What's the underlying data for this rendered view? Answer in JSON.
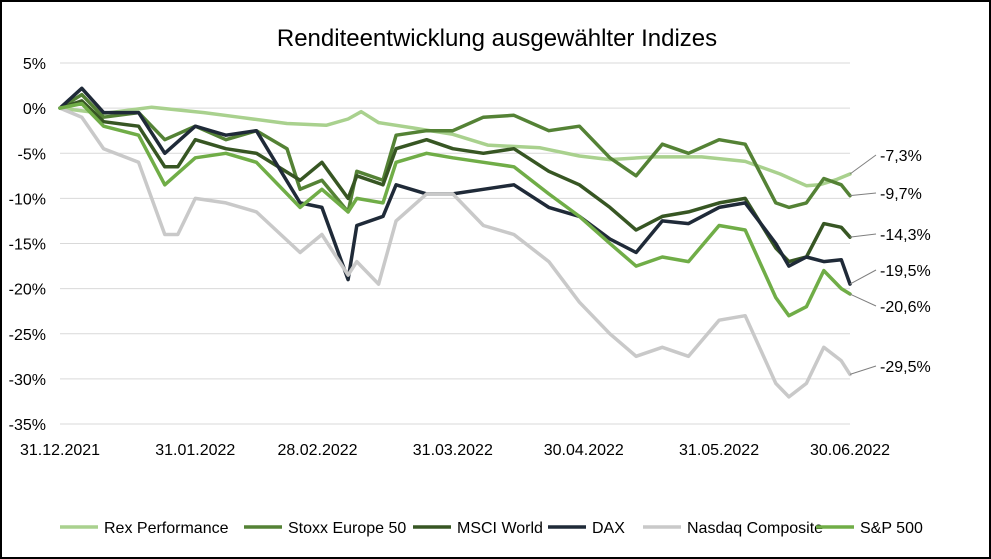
{
  "chart_data": {
    "type": "line",
    "title": "Renditeentwicklung ausgewählter Indizes",
    "xlabel": "",
    "ylabel": "",
    "ylim": [
      -35,
      5
    ],
    "y_ticks": [
      5,
      0,
      -5,
      -10,
      -15,
      -20,
      -25,
      -30,
      -35
    ],
    "y_tick_labels": [
      "5%",
      "0%",
      "-5%",
      "-10%",
      "-15%",
      "-20%",
      "-25%",
      "-30%",
      "-35%"
    ],
    "x_ticks": [
      "31.12.2021",
      "31.01.2022",
      "28.02.2022",
      "31.03.2022",
      "30.04.2022",
      "31.05.2022",
      "30.06.2022"
    ],
    "grid": true,
    "legend_position": "bottom",
    "series": [
      {
        "name": "Rex Performance",
        "color": "#a9d18e",
        "end_label": "-7,3%",
        "points": [
          [
            "31.12.2021",
            0
          ],
          [
            "10.01.2022",
            -0.6
          ],
          [
            "21.01.2022",
            0.1
          ],
          [
            "02.02.2022",
            -0.5
          ],
          [
            "10.02.2022",
            -1
          ],
          [
            "21.02.2022",
            -1.7
          ],
          [
            "02.03.2022",
            -1.9
          ],
          [
            "07.03.2022",
            -1.2
          ],
          [
            "10.03.2022",
            -0.4
          ],
          [
            "14.03.2022",
            -1.6
          ],
          [
            "22.03.2022",
            -2.2
          ],
          [
            "31.03.2022",
            -2.9
          ],
          [
            "08.04.2022",
            -4.1
          ],
          [
            "20.04.2022",
            -4.4
          ],
          [
            "29.04.2022",
            -5.3
          ],
          [
            "06.05.2022",
            -5.7
          ],
          [
            "16.05.2022",
            -5.4
          ],
          [
            "27.05.2022",
            -5.4
          ],
          [
            "06.06.2022",
            -5.9
          ],
          [
            "14.06.2022",
            -7.3
          ],
          [
            "20.06.2022",
            -8.6
          ],
          [
            "23.06.2022",
            -8.5
          ],
          [
            "27.06.2022",
            -7.9
          ],
          [
            "30.06.2022",
            -7.3
          ]
        ]
      },
      {
        "name": "Stoxx Europe 50",
        "color": "#548235",
        "end_label": "-9,7%",
        "points": [
          [
            "31.12.2021",
            0
          ],
          [
            "05.01.2022",
            1.5
          ],
          [
            "10.01.2022",
            -1
          ],
          [
            "18.01.2022",
            -0.5
          ],
          [
            "24.01.2022",
            -3.5
          ],
          [
            "31.01.2022",
            -2
          ],
          [
            "07.02.2022",
            -3.5
          ],
          [
            "14.02.2022",
            -2.5
          ],
          [
            "21.02.2022",
            -4.5
          ],
          [
            "24.02.2022",
            -9
          ],
          [
            "01.03.2022",
            -8
          ],
          [
            "07.03.2022",
            -11.5
          ],
          [
            "09.03.2022",
            -7
          ],
          [
            "15.03.2022",
            -8
          ],
          [
            "18.03.2022",
            -3
          ],
          [
            "25.03.2022",
            -2.5
          ],
          [
            "31.03.2022",
            -2.5
          ],
          [
            "07.04.2022",
            -1
          ],
          [
            "14.04.2022",
            -0.8
          ],
          [
            "22.04.2022",
            -2.5
          ],
          [
            "29.04.2022",
            -2
          ],
          [
            "06.05.2022",
            -5.5
          ],
          [
            "12.05.2022",
            -7.5
          ],
          [
            "18.05.2022",
            -4
          ],
          [
            "24.05.2022",
            -5
          ],
          [
            "31.05.2022",
            -3.5
          ],
          [
            "06.06.2022",
            -4
          ],
          [
            "13.06.2022",
            -10.5
          ],
          [
            "16.06.2022",
            -11
          ],
          [
            "20.06.2022",
            -10.5
          ],
          [
            "24.06.2022",
            -7.8
          ],
          [
            "28.06.2022",
            -8.5
          ],
          [
            "30.06.2022",
            -9.7
          ]
        ]
      },
      {
        "name": "MSCI World",
        "color": "#375623",
        "end_label": "-14,3%",
        "points": [
          [
            "31.12.2021",
            0
          ],
          [
            "05.01.2022",
            0.8
          ],
          [
            "10.01.2022",
            -1.5
          ],
          [
            "18.01.2022",
            -2
          ],
          [
            "24.01.2022",
            -6.5
          ],
          [
            "27.01.2022",
            -6.5
          ],
          [
            "31.01.2022",
            -3.5
          ],
          [
            "07.02.2022",
            -4.5
          ],
          [
            "14.02.2022",
            -5
          ],
          [
            "24.02.2022",
            -8
          ],
          [
            "01.03.2022",
            -6
          ],
          [
            "07.03.2022",
            -10
          ],
          [
            "09.03.2022",
            -7.5
          ],
          [
            "15.03.2022",
            -8.5
          ],
          [
            "18.03.2022",
            -4.5
          ],
          [
            "25.03.2022",
            -3.5
          ],
          [
            "31.03.2022",
            -4.5
          ],
          [
            "07.04.2022",
            -5
          ],
          [
            "14.04.2022",
            -4.5
          ],
          [
            "22.04.2022",
            -7
          ],
          [
            "29.04.2022",
            -8.5
          ],
          [
            "06.05.2022",
            -11
          ],
          [
            "12.05.2022",
            -13.5
          ],
          [
            "18.05.2022",
            -12
          ],
          [
            "24.05.2022",
            -11.5
          ],
          [
            "31.05.2022",
            -10.5
          ],
          [
            "06.06.2022",
            -10
          ],
          [
            "13.06.2022",
            -15.5
          ],
          [
            "16.06.2022",
            -17
          ],
          [
            "20.06.2022",
            -16.5
          ],
          [
            "24.06.2022",
            -12.8
          ],
          [
            "28.06.2022",
            -13.2
          ],
          [
            "30.06.2022",
            -14.3
          ]
        ]
      },
      {
        "name": "DAX",
        "color": "#1f2a38",
        "end_label": "-19,5%",
        "points": [
          [
            "31.12.2021",
            0
          ],
          [
            "05.01.2022",
            2.2
          ],
          [
            "10.01.2022",
            -0.5
          ],
          [
            "18.01.2022",
            -0.5
          ],
          [
            "24.01.2022",
            -5
          ],
          [
            "31.01.2022",
            -2
          ],
          [
            "07.02.2022",
            -3
          ],
          [
            "14.02.2022",
            -2.5
          ],
          [
            "24.02.2022",
            -10.5
          ],
          [
            "01.03.2022",
            -11
          ],
          [
            "07.03.2022",
            -19
          ],
          [
            "09.03.2022",
            -13
          ],
          [
            "15.03.2022",
            -12
          ],
          [
            "18.03.2022",
            -8.5
          ],
          [
            "25.03.2022",
            -9.5
          ],
          [
            "31.03.2022",
            -9.5
          ],
          [
            "07.04.2022",
            -9
          ],
          [
            "14.04.2022",
            -8.5
          ],
          [
            "22.04.2022",
            -11
          ],
          [
            "29.04.2022",
            -12
          ],
          [
            "06.05.2022",
            -14.5
          ],
          [
            "12.05.2022",
            -16
          ],
          [
            "18.05.2022",
            -12.5
          ],
          [
            "24.05.2022",
            -12.8
          ],
          [
            "31.05.2022",
            -11
          ],
          [
            "06.06.2022",
            -10.5
          ],
          [
            "13.06.2022",
            -15
          ],
          [
            "16.06.2022",
            -17.5
          ],
          [
            "20.06.2022",
            -16.5
          ],
          [
            "24.06.2022",
            -17
          ],
          [
            "28.06.2022",
            -16.8
          ],
          [
            "30.06.2022",
            -19.5
          ]
        ]
      },
      {
        "name": "Nasdaq Composite",
        "color": "#c9c9c9",
        "end_label": "-29,5%",
        "points": [
          [
            "31.12.2021",
            0
          ],
          [
            "05.01.2022",
            -1
          ],
          [
            "10.01.2022",
            -4.5
          ],
          [
            "18.01.2022",
            -6
          ],
          [
            "24.01.2022",
            -14
          ],
          [
            "27.01.2022",
            -14
          ],
          [
            "31.01.2022",
            -10
          ],
          [
            "07.02.2022",
            -10.5
          ],
          [
            "14.02.2022",
            -11.5
          ],
          [
            "24.02.2022",
            -16
          ],
          [
            "01.03.2022",
            -14
          ],
          [
            "07.03.2022",
            -18.5
          ],
          [
            "09.03.2022",
            -17
          ],
          [
            "14.03.2022",
            -19.5
          ],
          [
            "18.03.2022",
            -12.5
          ],
          [
            "25.03.2022",
            -9.5
          ],
          [
            "31.03.2022",
            -9.5
          ],
          [
            "07.04.2022",
            -13
          ],
          [
            "14.04.2022",
            -14
          ],
          [
            "22.04.2022",
            -17
          ],
          [
            "29.04.2022",
            -21.5
          ],
          [
            "06.05.2022",
            -25
          ],
          [
            "12.05.2022",
            -27.5
          ],
          [
            "18.05.2022",
            -26.5
          ],
          [
            "24.05.2022",
            -27.5
          ],
          [
            "31.05.2022",
            -23.5
          ],
          [
            "06.06.2022",
            -23
          ],
          [
            "13.06.2022",
            -30.5
          ],
          [
            "16.06.2022",
            -32
          ],
          [
            "20.06.2022",
            -30.5
          ],
          [
            "24.06.2022",
            -26.5
          ],
          [
            "28.06.2022",
            -28
          ],
          [
            "30.06.2022",
            -29.5
          ]
        ]
      },
      {
        "name": "S&P 500",
        "color": "#70ad47",
        "end_label": "-20,6%",
        "points": [
          [
            "31.12.2021",
            0
          ],
          [
            "05.01.2022",
            0.5
          ],
          [
            "10.01.2022",
            -2
          ],
          [
            "18.01.2022",
            -3
          ],
          [
            "24.01.2022",
            -8.5
          ],
          [
            "31.01.2022",
            -5.5
          ],
          [
            "07.02.2022",
            -5
          ],
          [
            "14.02.2022",
            -6
          ],
          [
            "24.02.2022",
            -11
          ],
          [
            "01.03.2022",
            -9
          ],
          [
            "07.03.2022",
            -11.5
          ],
          [
            "09.03.2022",
            -10
          ],
          [
            "15.03.2022",
            -10.5
          ],
          [
            "18.03.2022",
            -6
          ],
          [
            "25.03.2022",
            -5
          ],
          [
            "31.03.2022",
            -5.5
          ],
          [
            "07.04.2022",
            -6
          ],
          [
            "14.04.2022",
            -6.5
          ],
          [
            "22.04.2022",
            -9.5
          ],
          [
            "29.04.2022",
            -12
          ],
          [
            "06.05.2022",
            -15
          ],
          [
            "12.05.2022",
            -17.5
          ],
          [
            "18.05.2022",
            -16.5
          ],
          [
            "24.05.2022",
            -17
          ],
          [
            "31.05.2022",
            -13
          ],
          [
            "06.06.2022",
            -13.5
          ],
          [
            "13.06.2022",
            -21
          ],
          [
            "16.06.2022",
            -23
          ],
          [
            "20.06.2022",
            -22
          ],
          [
            "24.06.2022",
            -18
          ],
          [
            "28.06.2022",
            -20
          ],
          [
            "30.06.2022",
            -20.6
          ]
        ]
      }
    ]
  }
}
